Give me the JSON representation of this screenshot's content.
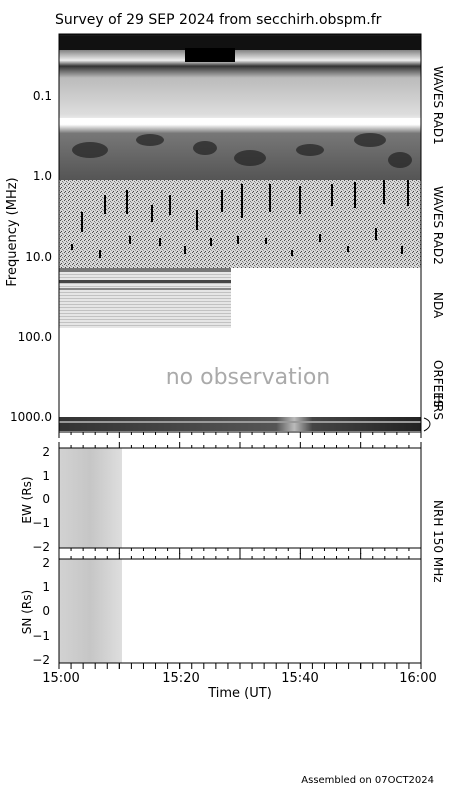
{
  "title": "Survey of 29 SEP 2024 from secchirh.obspm.fr",
  "footer": "Assembled on 07OCT2024",
  "no_observation": "no observation",
  "chart_data": [
    {
      "type": "heatmap",
      "panel": "dynamic spectrum",
      "ylabel": "Frequency (MHz)",
      "y_scale": "log",
      "y_ticks": [
        "0.1",
        "1.0",
        "10.0",
        "100.0",
        "1000.0"
      ],
      "instruments": [
        "WAVES RAD1",
        "WAVES RAD2",
        "NDA",
        "ORFEES",
        "HRS"
      ],
      "x_ticks": [
        "15:00",
        "15:20",
        "15:40",
        "16:00"
      ],
      "xlabel": "Time (UT)"
    },
    {
      "type": "heatmap",
      "panel": "NRH 150 MHz EW",
      "ylabel": "EW (Rs)",
      "ylim": [
        -2,
        2
      ],
      "y_ticks": [
        "2",
        "1",
        "0",
        "−1",
        "−2"
      ],
      "data_x_range": [
        "15:00",
        "15:11"
      ]
    },
    {
      "type": "heatmap",
      "panel": "NRH 150 MHz SN",
      "ylabel": "SN (Rs)",
      "ylim": [
        -2,
        2
      ],
      "y_ticks": [
        "2",
        "1",
        "0",
        "−1",
        "−2"
      ],
      "data_x_range": [
        "15:00",
        "15:11"
      ]
    }
  ],
  "nrh_label": "NRH 150 MHz"
}
